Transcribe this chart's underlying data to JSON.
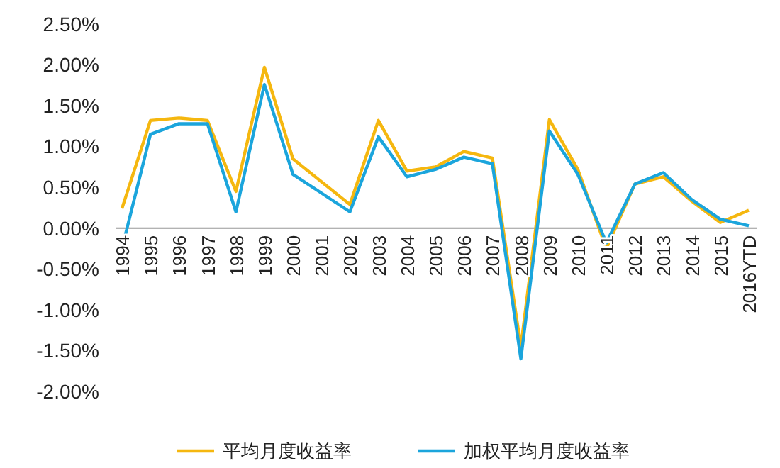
{
  "chart_data": {
    "type": "line",
    "categories": [
      "1994",
      "1995",
      "1996",
      "1997",
      "1998",
      "1999",
      "2000",
      "2001",
      "2002",
      "2003",
      "2004",
      "2005",
      "2006",
      "2007",
      "2008",
      "2009",
      "2010",
      "2011",
      "2012",
      "2013",
      "2014",
      "2015",
      "2016YTD"
    ],
    "series": [
      {
        "name": "平均月度收益率",
        "color": "#f5b70f",
        "values": [
          0.24,
          1.32,
          1.35,
          1.32,
          0.45,
          1.97,
          0.85,
          0.57,
          0.29,
          1.32,
          0.7,
          0.75,
          0.94,
          0.86,
          -1.45,
          1.33,
          0.72,
          -0.25,
          0.54,
          0.63,
          0.33,
          0.07,
          0.22
        ]
      },
      {
        "name": "加权平均月度收益率",
        "color": "#1ba5dc",
        "values": [
          -0.25,
          1.15,
          1.28,
          1.28,
          0.2,
          1.76,
          0.66,
          0.43,
          0.2,
          1.12,
          0.63,
          0.72,
          0.87,
          0.79,
          -1.6,
          1.19,
          0.66,
          -0.18,
          0.54,
          0.68,
          0.35,
          0.11,
          0.03
        ]
      }
    ],
    "ylim": [
      -2,
      2.5
    ],
    "yticks": [
      {
        "value": -2,
        "label": "-2.00%"
      },
      {
        "value": -1.5,
        "label": "-1.50%"
      },
      {
        "value": -1,
        "label": "-1.00%"
      },
      {
        "value": -0.5,
        "label": "-0.50%"
      },
      {
        "value": 0,
        "label": "0.00%"
      },
      {
        "value": 0.5,
        "label": "0.50%"
      },
      {
        "value": 1,
        "label": "1.00%"
      },
      {
        "value": 1.5,
        "label": "1.50%"
      },
      {
        "value": 2,
        "label": "2.00%"
      },
      {
        "value": 2.5,
        "label": "2.50%"
      }
    ],
    "grid": false,
    "legend": "bottom",
    "marker": "none",
    "line_style": "solid"
  }
}
